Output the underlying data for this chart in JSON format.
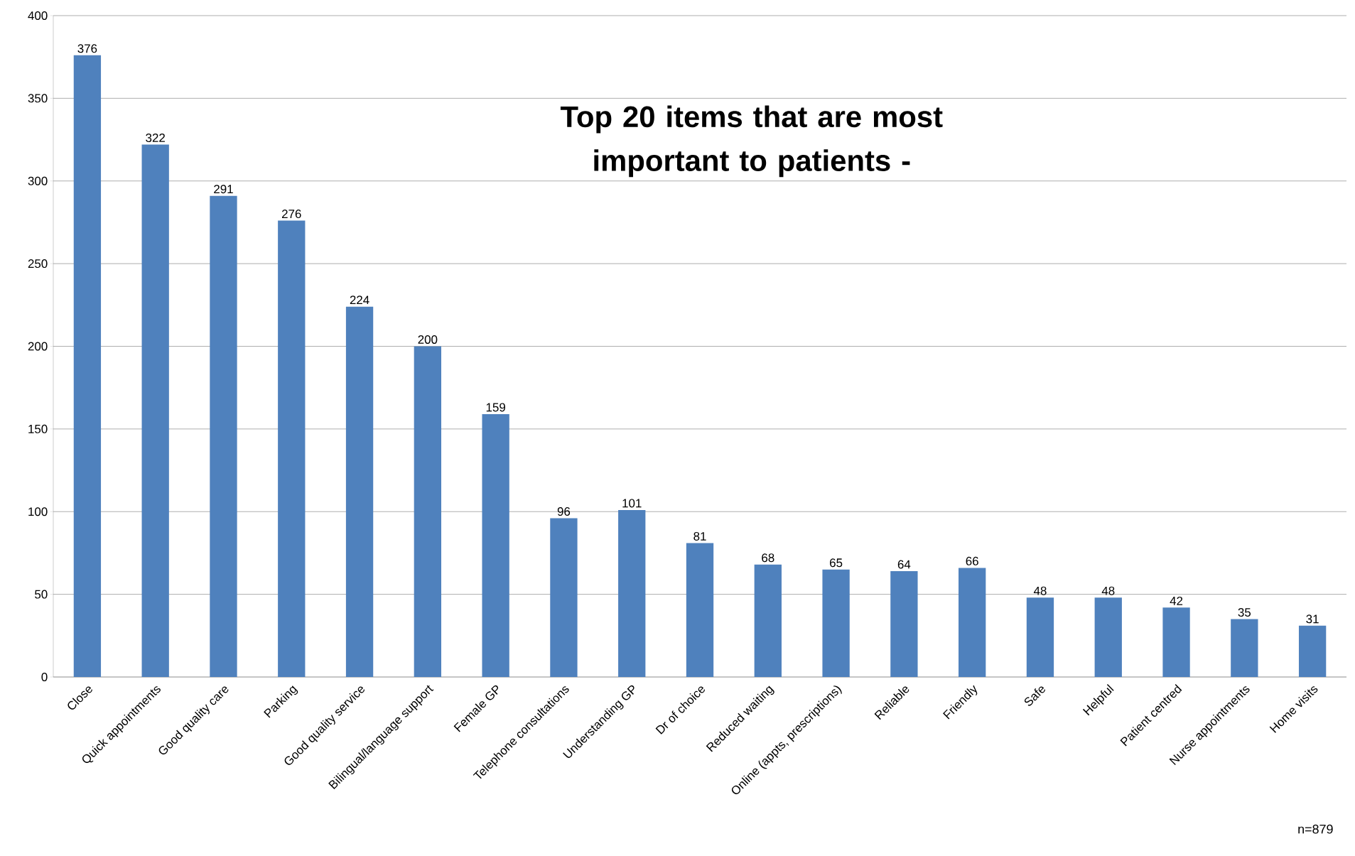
{
  "chart_data": {
    "type": "bar",
    "title": "Top 20 items that are most important to patients -",
    "categories": [
      "Close",
      "Quick appointments",
      "Good quality care",
      "Parking",
      "Good quality service",
      "Bilingual/language support",
      "Female GP",
      "Telephone consultations",
      "Understanding GP",
      "Dr of choice",
      "Reduced waiting",
      "Online (appts, prescriptions)",
      "Reliable",
      "Friendly",
      "Safe",
      "Helpful",
      "Patient centred",
      "Nurse appointments",
      "Home visits"
    ],
    "values": [
      376,
      322,
      291,
      276,
      224,
      200,
      159,
      96,
      101,
      81,
      68,
      65,
      64,
      66,
      48,
      48,
      42,
      35,
      31
    ],
    "color": "#4f81bd",
    "ylim": [
      0,
      400
    ],
    "yticks": [
      0,
      50,
      100,
      150,
      200,
      250,
      300,
      350,
      400
    ],
    "grid": "y",
    "data_labels": true,
    "annotations": [
      "n=879"
    ]
  }
}
